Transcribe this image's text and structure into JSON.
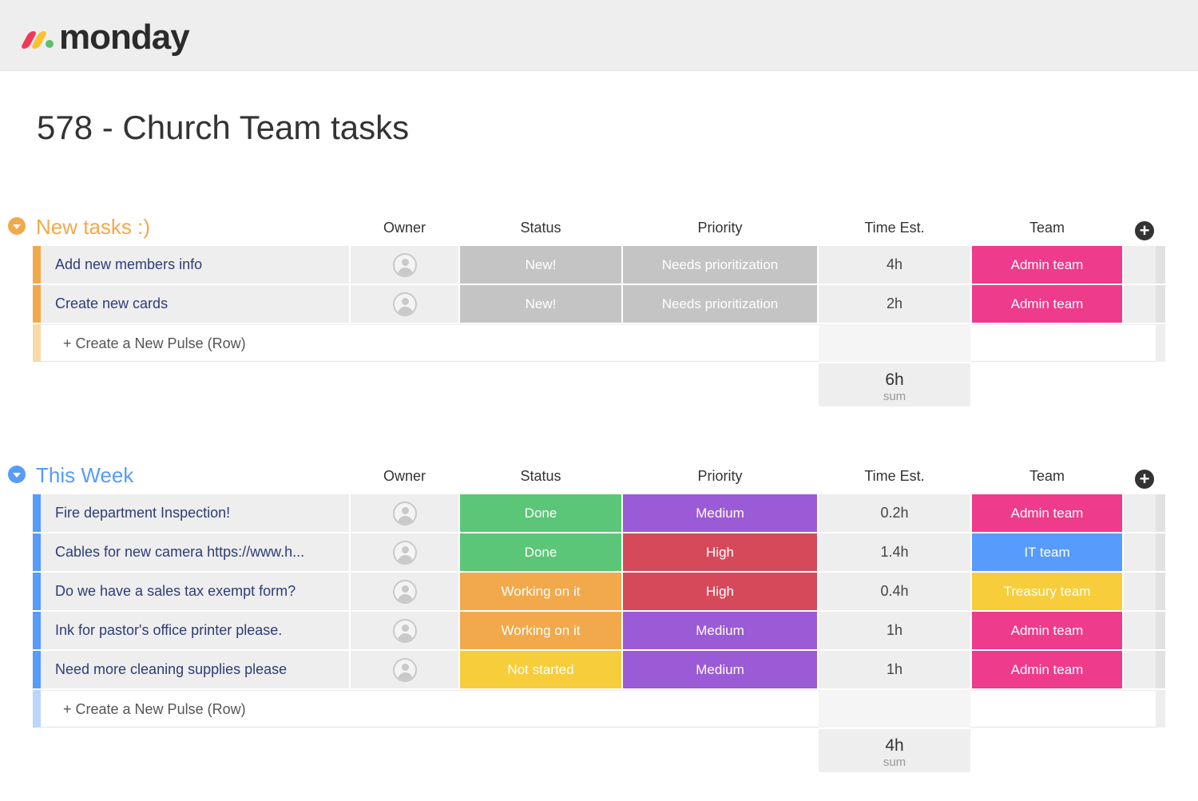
{
  "app": {
    "brand": "monday"
  },
  "board": {
    "title": "578 - Church Team tasks"
  },
  "columns": {
    "owner": "Owner",
    "status": "Status",
    "priority": "Priority",
    "time": "Time Est.",
    "team": "Team"
  },
  "colors": {
    "new_group": "#f2a94b",
    "week_group": "#579bfc",
    "gray": "#c4c4c4",
    "done": "#5bc677",
    "working": "#f2a94b",
    "not_started": "#f7cd3b",
    "medium": "#9b5bd6",
    "high": "#d6495b",
    "admin": "#ee3b8b",
    "it": "#579bfc",
    "treasury": "#f7cd3b"
  },
  "groups": [
    {
      "title": "New tasks :)",
      "color": "#f2a94b",
      "light": "#f9d9a8",
      "rows": [
        {
          "name": "Add new members info",
          "status": "New!",
          "status_color": "#c4c4c4",
          "priority": "Needs prioritization",
          "priority_color": "#c4c4c4",
          "time": "4h",
          "team": "Admin team",
          "team_color": "#ee3b8b"
        },
        {
          "name": "Create new cards",
          "status": "New!",
          "status_color": "#c4c4c4",
          "priority": "Needs prioritization",
          "priority_color": "#c4c4c4",
          "time": "2h",
          "team": "Admin team",
          "team_color": "#ee3b8b"
        }
      ],
      "create_label": "+ Create a New Pulse (Row)",
      "sum_value": "6h",
      "sum_label": "sum"
    },
    {
      "title": "This Week",
      "color": "#579bfc",
      "light": "#bcd5fb",
      "rows": [
        {
          "name": "Fire department Inspection!",
          "status": "Done",
          "status_color": "#5bc677",
          "priority": "Medium",
          "priority_color": "#9b5bd6",
          "time": "0.2h",
          "team": "Admin team",
          "team_color": "#ee3b8b"
        },
        {
          "name": "Cables for new camera https://www.h...",
          "status": "Done",
          "status_color": "#5bc677",
          "priority": "High",
          "priority_color": "#d6495b",
          "time": "1.4h",
          "team": "IT team",
          "team_color": "#579bfc"
        },
        {
          "name": "Do we have a sales tax exempt form?",
          "status": "Working on it",
          "status_color": "#f2a94b",
          "priority": "High",
          "priority_color": "#d6495b",
          "time": "0.4h",
          "team": "Treasury team",
          "team_color": "#f7cd3b"
        },
        {
          "name": "Ink for pastor's office printer please.",
          "status": "Working on it",
          "status_color": "#f2a94b",
          "priority": "Medium",
          "priority_color": "#9b5bd6",
          "time": "1h",
          "team": "Admin team",
          "team_color": "#ee3b8b"
        },
        {
          "name": "Need more cleaning supplies please",
          "status": "Not started",
          "status_color": "#f7cd3b",
          "priority": "Medium",
          "priority_color": "#9b5bd6",
          "time": "1h",
          "team": "Admin team",
          "team_color": "#ee3b8b"
        }
      ],
      "create_label": "+ Create a New Pulse (Row)",
      "sum_value": "4h",
      "sum_label": "sum"
    }
  ]
}
